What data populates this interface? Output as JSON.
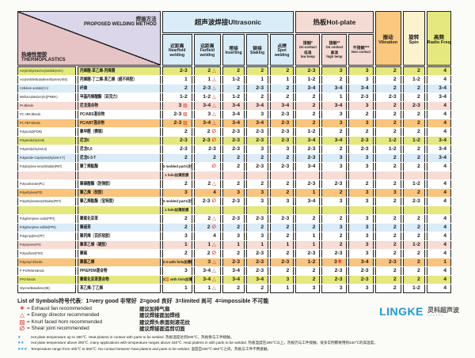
{
  "colors": {
    "row_yellow": "#e5e87d",
    "row_blue": "#d9ecf8",
    "row_pink": "#f8ddd5",
    "row_orange": "#fac47c",
    "row_white": "#ffffff",
    "ultrasonic_header": "#d8edf8",
    "hotplate_header": "#f4dcd4",
    "vibration_header": "#fac87e",
    "spin_header": "#faf3cd",
    "radio_header": "#e5e87d",
    "corner_pink": "#e6c3c4",
    "corner_lavender": "#dcd6ea",
    "symbol_red": "#e53322",
    "star_blue": "#2e9fe0",
    "logo_blue": "#1a9ad6"
  },
  "header": {
    "method_cn": "焊接方法",
    "method_en": "PROPOSED WELDING METHOD",
    "materials_cn": "热熔性塑胶",
    "materials_en": "THERMOPLASTICS",
    "ultrasonic": {
      "label": "超声波焊接Ultrasonic",
      "cols": [
        {
          "cn": "近距离",
          "en": "Nearfield welding"
        },
        {
          "cn": "远距离",
          "en": "Farfield welding"
        },
        {
          "cn": "埋接",
          "en": "Inserting"
        },
        {
          "cn": "铆接",
          "en": "Staking"
        },
        {
          "cn": "点焊",
          "en": "Spot welding"
        }
      ]
    },
    "hotplate": {
      "label": "热板Hot-plate",
      "cols": [
        {
          "lines": [
            "接触*",
            "On-contact",
            "低温",
            "low temp"
          ]
        },
        {
          "lines": [
            "接触**",
            "On contact",
            "高温",
            "high temp"
          ]
        },
        {
          "lines": [
            "不接触***",
            "Non contact"
          ]
        }
      ]
    },
    "vibration": {
      "cn": "振动",
      "en": "Vibration"
    },
    "spin": {
      "cn": "旋转",
      "en": "Spin"
    },
    "radio": {
      "cn": "高频",
      "en": "Radio Freq"
    }
  },
  "rows": [
    {
      "en": "Acrylic/Styrene/Acrylonitrile(ASA)",
      "cn": "丙烯酸-苯乙烯-丙烯腈",
      "color": "y",
      "cells": [
        "2-3",
        "2 [t]",
        "2",
        "2",
        "2",
        "2-3",
        "3",
        "3",
        "2",
        "2",
        "4"
      ]
    },
    {
      "en": "Acrylonitrile/Butadiene/Styrene(ABS)",
      "cn": "丙烯腈-丁二烯-苯乙烯（超不碎胶）",
      "color": "w",
      "cells": [
        "1",
        "1 [t]",
        "1-2",
        "1",
        "1",
        "1-2",
        "2",
        "3",
        "2",
        "1-2",
        "4"
      ]
    },
    {
      "en": "Cellulose acetate(CA)",
      "cn": "纤维",
      "color": "b",
      "cells": [
        "2",
        "2-3 [t]",
        "2",
        "2-3",
        "2",
        "3-4",
        "3-4",
        "3-4",
        "2",
        "2",
        "3-4"
      ]
    },
    {
      "en": "Methacrylate(acrylic)(PMMA)",
      "cn": "甲基丙烯酸酯（亚克力）",
      "color": "w",
      "cells": [
        "1-2",
        "1-2 [t]",
        "1-2",
        "2",
        "2",
        "2",
        "1",
        "2-3",
        "2-3",
        "2",
        "3-4"
      ]
    },
    {
      "en": "PA-Blends",
      "cn": "尼龙混合物",
      "color": "p",
      "cells": [
        "3 [s]",
        "3-4 [t]",
        "3-4",
        "3-4",
        "3-4",
        "2",
        "3-4",
        "3",
        "2",
        "2-3",
        "4"
      ]
    },
    {
      "en": "PC·ABS-Blends",
      "cn": "PC/ABS混合物",
      "color": "w",
      "cells": [
        "2-3 [s]",
        "3 [t]",
        "3-4",
        "3",
        "2-3",
        "2",
        "3",
        "2",
        "2",
        "2",
        "4"
      ]
    },
    {
      "en": "PC·PBT-Blends",
      "cn": "PC/ABT混合物",
      "color": "o",
      "cells": [
        "2-3 [s]",
        "3-4 [t]",
        "3-4",
        "3-4",
        "2-3",
        "2",
        "3",
        "3",
        "2",
        "2",
        "4"
      ]
    },
    {
      "en": "Polyacetal(POM)",
      "cn": "聚甲醛（赛钢）",
      "color": "w",
      "cells": [
        "2",
        "2 [o]",
        "2-3",
        "2-3",
        "2-3",
        "1-2",
        "2",
        "2",
        "2",
        "2",
        "4"
      ]
    },
    {
      "en": "Polyamide(Nylon6)",
      "cn": "尼龙6",
      "color": "y",
      "cells": [
        "2-3",
        "2-3 [o]",
        "2-3",
        "2-3",
        "2-3",
        "3-4",
        "3-4",
        "2-3",
        "1-2",
        "1-2",
        "3-4"
      ]
    },
    {
      "en": "Polyamide(Nylon6,6)",
      "cn": "尼龙6,6",
      "color": "w",
      "cells": [
        "2-3",
        "2-3",
        "2-3",
        "3",
        "3",
        "2-3",
        "2",
        "2-3",
        "1-2",
        "2",
        "3-4"
      ]
    },
    {
      "en": "Polyamide-Copolymer(Nylon6-3-T)",
      "cn": "尼龙6-3-T",
      "color": "b",
      "cells": [
        "2",
        "2",
        "2",
        "2",
        "2",
        "2-3",
        "3",
        "3",
        "2",
        "2",
        "3-4"
      ]
    },
    {
      "en": "Polybutylene terephthalate(PBT)",
      "cn": "聚丁烯酞酯",
      "color": "w",
      "cells": [
        "3 molded parts注塑件",
        "[o]",
        "2",
        "2-3",
        "2-3",
        "3-4",
        "3",
        "3",
        "2",
        "2",
        "4"
      ],
      "extra": "1 foils加薄胶膜",
      "extraColor": "p"
    },
    {
      "en": "Polycarbonate(PC)",
      "cn": "聚碳酸酯（防弹胶）",
      "color": "w",
      "cells": [
        "2",
        "2 [t]",
        "2",
        "2",
        "2",
        "2-3",
        "2-3",
        "2",
        "2",
        "1-2",
        "4"
      ]
    },
    {
      "en": "Polyethylene(PE)",
      "cn": "聚乙烯（软胶）",
      "color": "o",
      "cells": [
        "3",
        "4",
        "3",
        "3",
        "2",
        "1",
        "2",
        "3",
        "3",
        "2",
        "4"
      ]
    },
    {
      "en": "Polyethyleneterephthalate(PET)",
      "cn": "聚乙烯酞酯（宝特胶）",
      "color": "w",
      "cells": [
        "3 molded parts注塑件",
        "2-3 [o]",
        "2-3",
        "3",
        "3",
        "3-4",
        "3",
        "3",
        "2",
        "2-3",
        "4"
      ],
      "extra": "1 foils加薄胶膜",
      "extraColor": "y"
    },
    {
      "en": "Polyphenylene oxide(PPO)",
      "cn": "聚氧化亚苯",
      "color": "w",
      "cells": [
        "2",
        "2 [t]",
        "2-3",
        "2-3",
        "2-3",
        "2",
        "2",
        "3",
        "2",
        "2",
        "4"
      ]
    },
    {
      "en": "Polyphenylene sulfide(PPS)",
      "cn": "聚硫苯",
      "color": "b",
      "cells": [
        "2",
        "2 [o]",
        "2",
        "2",
        "2",
        "2",
        "3",
        "3",
        "2",
        "2",
        "4"
      ]
    },
    {
      "en": "Polypropylene(PP)",
      "cn": "聚丙烯（百折软胶）",
      "color": "w",
      "cells": [
        "3",
        "4",
        "3",
        "3",
        "2",
        "1",
        "2",
        "3",
        "2",
        "2",
        "4"
      ]
    },
    {
      "en": "Polystyrene(PS)",
      "cn": "聚苯乙烯（硬胶）",
      "color": "p",
      "cells": [
        "1",
        "1 [t]",
        "1",
        "1",
        "1",
        "1",
        "2",
        "3",
        "2",
        "1-2",
        "4"
      ]
    },
    {
      "en": "Polysulfone(PSO)",
      "cn": "聚砜",
      "color": "w",
      "cells": [
        "2",
        "2 [o]",
        "2",
        "2-3",
        "2",
        "2-3",
        "2-3",
        "3",
        "2",
        "2",
        "4"
      ]
    },
    {
      "en": "Polyvinyl chloride",
      "cn": "聚氯乙烯",
      "color": "o",
      "cells": [
        "2-3 with foils加薄胶膜",
        "3 [t]",
        "2-3",
        "2-3",
        "2-3",
        "1-2",
        "3[f]",
        "3-4",
        "2-3",
        "2",
        "1"
      ]
    },
    {
      "en": "P·P-EPDM-Blends",
      "cn": "PP/EPDM混合物",
      "color": "w",
      "cells": [
        "3",
        "3-4 [t]",
        "3-4",
        "2-3",
        "2",
        "2",
        "2-3",
        "2-3",
        "2",
        "2",
        "4"
      ]
    },
    {
      "en": "PPO-blends",
      "cn": "聚氧化亚苯混合物",
      "color": "y",
      "cells": [
        "3[s] with foils加薄胶膜",
        "3-4 [t]",
        "3-4",
        "3-4",
        "3",
        "2",
        "2-3",
        "2-3",
        "2",
        "2",
        "4"
      ]
    },
    {
      "en": "Styrene/Butadiene(SB)",
      "cn": "苯乙烯-丁乙烯",
      "color": "w",
      "cells": [
        "1",
        "1 [t]",
        "2",
        "2",
        "1",
        "3",
        "3",
        "3",
        "2",
        "1-2",
        "4"
      ]
    }
  ],
  "legend": {
    "title": "List of Symbols符号代表:  1=very good 非常好  2=good 良好  3=limited 尚可  4=impossible 不可能",
    "items": [
      {
        "sym": "[f]",
        "en": "= Exhaust fan recommended",
        "cn": "建议加排气扇"
      },
      {
        "sym": "[t]",
        "en": "= Energy director recommended",
        "cn": "建议焊接面加焊线"
      },
      {
        "sym": "[s]",
        "en": "= Knurl faced horn recommended",
        "cn": "建议焊头表面刻滚花纹"
      },
      {
        "sym": "[o]",
        "en": "= Shear joint recommended",
        "cn": "建议焊接面造剪切面"
      }
    ]
  },
  "footnotes": [
    {
      "stars": "★",
      "text": "Hot plate temperature up to 290℃. Heat platens in contact with parts to be welded.  热板温度达到290℃，热板要与工件接触。"
    },
    {
      "stars": "★★",
      "text": "Hot plate temperature above 290℃, many applications with temperature ranges above 340℃. Heat platens in with parts to be welded.  热板温度在290℃以上，热板仍与工件接触，很多实例都要用到340℃的高温度。"
    },
    {
      "stars": "★★★",
      "text": "Temperature range from 400℃ to 650℃. No contact between heat platens and parts to be welded.  温度自400℃-650℃之间，热板与工件不用接触。"
    }
  ],
  "logo": {
    "name": "LINGKE",
    "cn": "灵科超声波"
  }
}
